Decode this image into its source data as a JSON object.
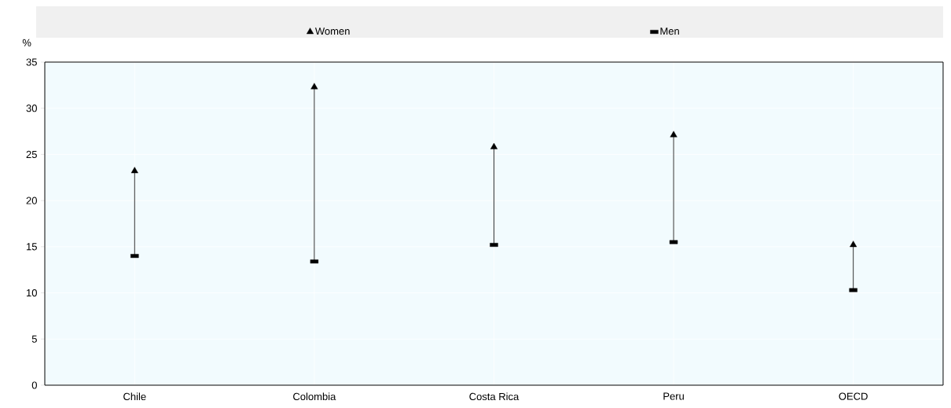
{
  "chart_data": {
    "type": "scatter",
    "ylabel": "%",
    "categories": [
      "Chile",
      "Colombia",
      "Costa Rica",
      "Peru",
      "OECD"
    ],
    "series": [
      {
        "name": "Women",
        "color": "#000000",
        "marker": "triangle",
        "values": [
          23.2,
          32.3,
          25.8,
          27.1,
          15.2
        ]
      },
      {
        "name": "Men",
        "color": "#000000",
        "marker": "square",
        "values": [
          14.0,
          13.4,
          15.2,
          15.5,
          10.3
        ]
      }
    ],
    "ylim": [
      0,
      35
    ],
    "yticks": [
      0,
      5,
      10,
      15,
      20,
      25,
      30,
      35
    ],
    "grid": true,
    "legend": "top"
  }
}
